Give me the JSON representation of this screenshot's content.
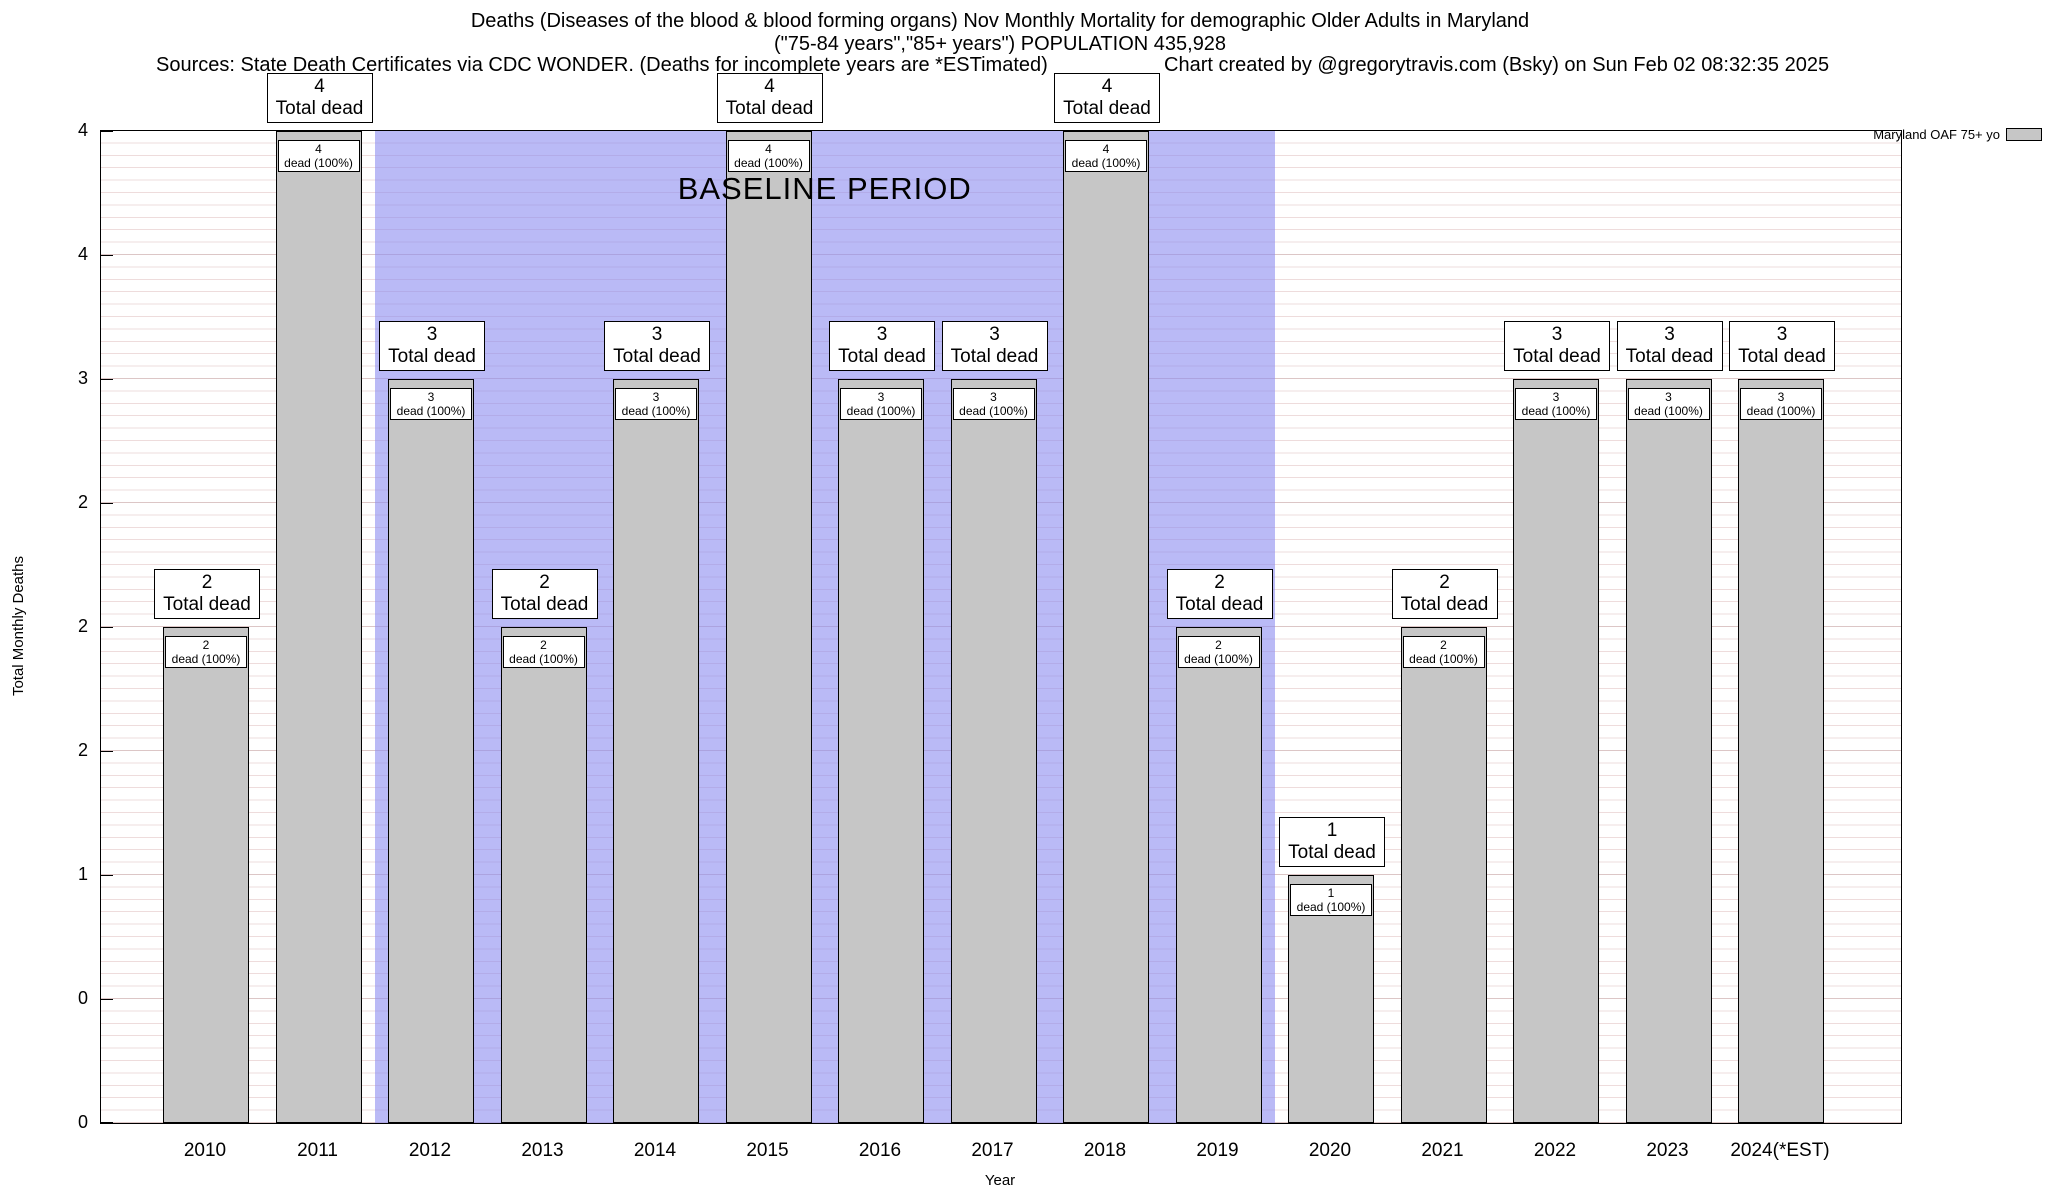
{
  "header": {
    "title_line1": "Deaths (Diseases of the blood & blood forming organs) Nov Monthly Mortality for demographic Older Adults in Maryland",
    "title_line2": "(\"75-84 years\",\"85+ years\") POPULATION 435,928",
    "sources": "Sources: State Death Certificates via CDC WONDER. (Deaths for incomplete years are *ESTimated)",
    "credit": "Chart created by @gregorytravis.com (Bsky) on Sun Feb 02 08:32:35 2025"
  },
  "chart_data": {
    "type": "bar",
    "title": "Deaths (Diseases of the blood & blood forming organs) Nov Monthly Mortality for demographic Older Adults in Maryland (\"75-84 years\",\"85+ years\") POPULATION 435,928",
    "xlabel": "Year",
    "ylabel": "Total Monthly Deaths",
    "ylim": [
      0,
      4
    ],
    "grid": true,
    "legend_label": "Maryland OAF 75+ yo",
    "legend_position": "top-right",
    "categories": [
      "2010",
      "2011",
      "2012",
      "2013",
      "2014",
      "2015",
      "2016",
      "2017",
      "2018",
      "2019",
      "2020",
      "2021",
      "2022",
      "2023",
      "2024(*EST)"
    ],
    "values": [
      2,
      4,
      3,
      2,
      3,
      4,
      3,
      3,
      4,
      2,
      1,
      2,
      3,
      3,
      3
    ],
    "bar_color": "#c6c6c6",
    "top_label_suffix": "Total dead",
    "inner_label_suffix": "dead (100%)",
    "yticks": [
      {
        "value": 4.0,
        "label": "4"
      },
      {
        "value": 3.5,
        "label": "4"
      },
      {
        "value": 3.0,
        "label": "3"
      },
      {
        "value": 2.5,
        "label": "2"
      },
      {
        "value": 2.0,
        "label": "2"
      },
      {
        "value": 1.5,
        "label": "2"
      },
      {
        "value": 1.0,
        "label": "1"
      },
      {
        "value": 0.5,
        "label": "0"
      },
      {
        "value": 0.0,
        "label": "0"
      }
    ],
    "baseline_region": {
      "start": "2012",
      "end": "2019",
      "label": "BASELINE PERIOD",
      "color": "#8c8cf0"
    }
  }
}
